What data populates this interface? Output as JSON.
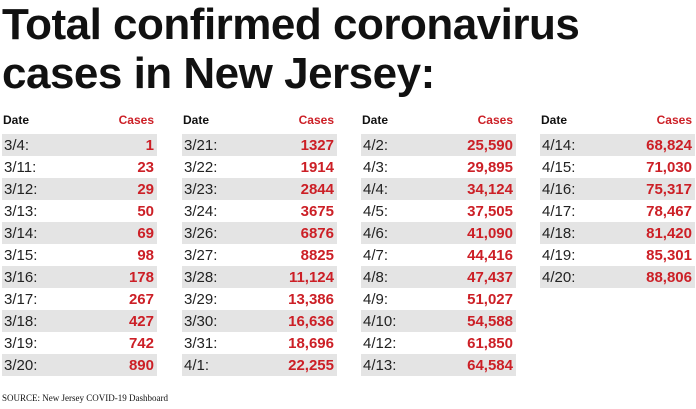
{
  "title": {
    "line1": "Total confirmed coronavirus",
    "line2": "cases in New Jersey:"
  },
  "headers": {
    "date": "Date",
    "cases": "Cases"
  },
  "columns": [
    {
      "rows": [
        {
          "date": "3/4:",
          "cases": "1"
        },
        {
          "date": "3/11:",
          "cases": "23"
        },
        {
          "date": "3/12:",
          "cases": "29"
        },
        {
          "date": "3/13:",
          "cases": "50"
        },
        {
          "date": "3/14:",
          "cases": "69"
        },
        {
          "date": "3/15:",
          "cases": "98"
        },
        {
          "date": "3/16:",
          "cases": "178"
        },
        {
          "date": "3/17:",
          "cases": "267"
        },
        {
          "date": "3/18:",
          "cases": "427"
        },
        {
          "date": "3/19:",
          "cases": "742"
        },
        {
          "date": "3/20:",
          "cases": "890"
        }
      ]
    },
    {
      "rows": [
        {
          "date": "3/21:",
          "cases": "1327"
        },
        {
          "date": "3/22:",
          "cases": "1914"
        },
        {
          "date": "3/23:",
          "cases": "2844"
        },
        {
          "date": "3/24:",
          "cases": "3675"
        },
        {
          "date": "3/26:",
          "cases": "6876"
        },
        {
          "date": "3/27:",
          "cases": "8825"
        },
        {
          "date": "3/28:",
          "cases": "11,124"
        },
        {
          "date": "3/29:",
          "cases": "13,386"
        },
        {
          "date": "3/30:",
          "cases": "16,636"
        },
        {
          "date": "3/31:",
          "cases": "18,696"
        },
        {
          "date": "4/1:",
          "cases": "22,255"
        }
      ]
    },
    {
      "rows": [
        {
          "date": "4/2:",
          "cases": "25,590"
        },
        {
          "date": "4/3:",
          "cases": "29,895"
        },
        {
          "date": "4/4:",
          "cases": "34,124"
        },
        {
          "date": "4/5:",
          "cases": "37,505"
        },
        {
          "date": "4/6:",
          "cases": "41,090"
        },
        {
          "date": "4/7:",
          "cases": "44,416"
        },
        {
          "date": "4/8:",
          "cases": "47,437"
        },
        {
          "date": "4/9:",
          "cases": "51,027"
        },
        {
          "date": "4/10:",
          "cases": "54,588"
        },
        {
          "date": "4/12:",
          "cases": "61,850"
        },
        {
          "date": "4/13:",
          "cases": "64,584"
        }
      ]
    },
    {
      "rows": [
        {
          "date": "4/14:",
          "cases": "68,824"
        },
        {
          "date": "4/15:",
          "cases": "71,030"
        },
        {
          "date": "4/16:",
          "cases": "75,317"
        },
        {
          "date": "4/17:",
          "cases": "78,467"
        },
        {
          "date": "4/18:",
          "cases": "81,420"
        },
        {
          "date": "4/19:",
          "cases": "85,301"
        },
        {
          "date": "4/20:",
          "cases": "88,806"
        }
      ]
    }
  ],
  "source": "SOURCE: New Jersey COVID-19 Dashboard",
  "colors": {
    "accent": "#cc1f26",
    "stripe": "#e4e4e4",
    "text": "#111111"
  }
}
